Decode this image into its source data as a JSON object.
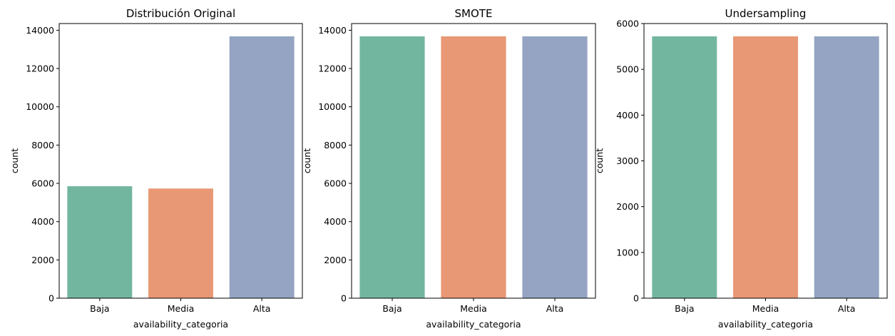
{
  "chart_data": [
    {
      "type": "bar",
      "title": "Distribución Original",
      "xlabel": "availability_categoria",
      "ylabel": "count",
      "categories": [
        "Baja",
        "Media",
        "Alta"
      ],
      "values": [
        5850,
        5730,
        13680
      ],
      "ylim": [
        0,
        14350
      ],
      "yticks": [
        0,
        2000,
        4000,
        6000,
        8000,
        10000,
        12000,
        14000
      ],
      "colors": [
        "#73b6a0",
        "#e89874",
        "#94a4c2"
      ],
      "grid": false
    },
    {
      "type": "bar",
      "title": "SMOTE",
      "xlabel": "availability_categoria",
      "ylabel": "count",
      "categories": [
        "Baja",
        "Media",
        "Alta"
      ],
      "values": [
        13680,
        13680,
        13680
      ],
      "ylim": [
        0,
        14350
      ],
      "yticks": [
        0,
        2000,
        4000,
        6000,
        8000,
        10000,
        12000,
        14000
      ],
      "colors": [
        "#73b6a0",
        "#e89874",
        "#94a4c2"
      ],
      "grid": false
    },
    {
      "type": "bar",
      "title": "Undersampling",
      "xlabel": "availability_categoria",
      "ylabel": "count",
      "categories": [
        "Baja",
        "Media",
        "Alta"
      ],
      "values": [
        5720,
        5720,
        5720
      ],
      "ylim": [
        0,
        6000
      ],
      "yticks": [
        0,
        1000,
        2000,
        3000,
        4000,
        5000,
        6000
      ],
      "colors": [
        "#73b6a0",
        "#e89874",
        "#94a4c2"
      ],
      "grid": false
    }
  ]
}
